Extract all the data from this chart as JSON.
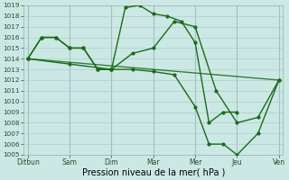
{
  "background_color": "#cce8e4",
  "grid_color": "#b0cccc",
  "line_color": "#1a6b1a",
  "xlabel": "Pression niveau de la mer( hPa )",
  "ylim": [
    1005,
    1019
  ],
  "xlim": [
    -0.1,
    6.1
  ],
  "xtick_labels": [
    "Ditbun",
    "Sam",
    "Dim",
    "Mar",
    "Mer",
    "Jeu",
    "Ven"
  ],
  "line1_x": [
    0,
    0.33,
    0.67,
    1.0,
    1.33,
    1.67,
    2.0,
    2.5,
    3.0,
    3.5,
    4.0,
    4.5,
    5.0,
    5.5,
    6.0
  ],
  "line1_y": [
    1014.0,
    1016.0,
    1016.0,
    1015.0,
    1015.0,
    1013.0,
    1013.0,
    1014.5,
    1015.0,
    1017.5,
    1017.0,
    1011.0,
    1008.0,
    1008.5,
    1012.0
  ],
  "line2_x": [
    0,
    0.33,
    0.67,
    1.0,
    1.33,
    1.67,
    2.0,
    2.33,
    2.67,
    3.0,
    3.33,
    3.67,
    4.0,
    4.33,
    4.67,
    5.0
  ],
  "line2_y": [
    1014.0,
    1016.0,
    1016.0,
    1015.0,
    1015.0,
    1013.0,
    1013.0,
    1018.8,
    1019.0,
    1018.2,
    1018.0,
    1017.5,
    1015.5,
    1008.0,
    1009.0,
    1009.0
  ],
  "line3_x": [
    0,
    1.0,
    2.0,
    2.5,
    3.0,
    3.5,
    4.0,
    4.33,
    4.67,
    5.0,
    5.5,
    6.0
  ],
  "line3_y": [
    1014.0,
    1013.5,
    1013.0,
    1013.0,
    1012.8,
    1012.5,
    1009.5,
    1006.0,
    1006.0,
    1005.0,
    1007.0,
    1012.0
  ],
  "line4_x": [
    0,
    6.0
  ],
  "line4_y": [
    1014.0,
    1012.0
  ]
}
